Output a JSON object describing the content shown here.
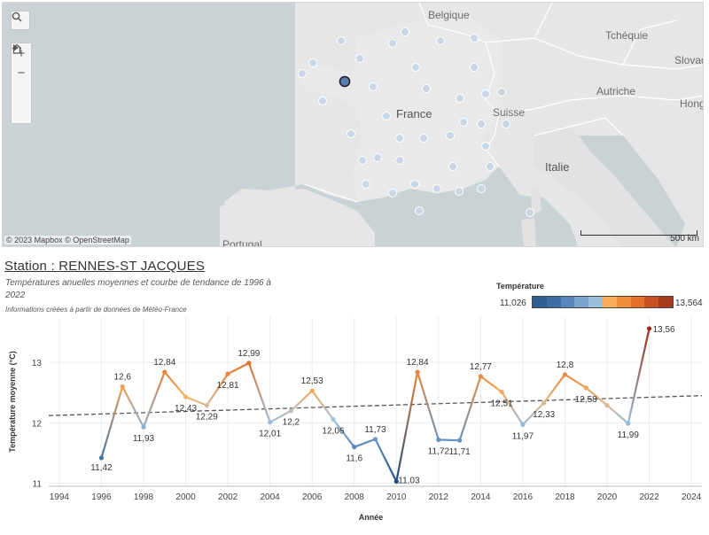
{
  "map": {
    "countries": [
      {
        "name": "Belgique",
        "id": "belgique"
      },
      {
        "name": "Tchéquie",
        "id": "tchequie"
      },
      {
        "name": "Slovaq",
        "id": "slovaquie"
      },
      {
        "name": "Autriche",
        "id": "autriche"
      },
      {
        "name": "Hong",
        "id": "hongrie"
      },
      {
        "name": "France",
        "id": "france"
      },
      {
        "name": "Suisse",
        "id": "suisse"
      },
      {
        "name": "Italie",
        "id": "italie"
      },
      {
        "name": "Portugal",
        "id": "portugal"
      }
    ],
    "attribution": "© 2023 Mapbox  © OpenStreetMap",
    "scale_label": "500 km",
    "tools": {
      "search": "search-icon",
      "zoom_in": "+",
      "zoom_out": "−",
      "home": "home-icon",
      "play": "play-icon"
    },
    "colors": {
      "sea": "#c9d3d5",
      "land": "#e6e6e6",
      "border": "#ffffff",
      "station": "#c9d7e6",
      "selected": "#5b7cb2"
    }
  },
  "header": {
    "title": "Station : RENNES-ST JACQUES",
    "subtitle": "Températures anuelles moyennes et courbe de tendance de 1996 à 2022",
    "note": "Informations créées à partir de données de Météo-France"
  },
  "legend": {
    "title": "Température",
    "min": "11,026",
    "max": "13,564",
    "colors": [
      "#2f5f91",
      "#3b6fa3",
      "#5787b8",
      "#79a5cc",
      "#9cc0dc",
      "#f8ad5c",
      "#f18e3c",
      "#e2702b",
      "#c8521f",
      "#a73a1c"
    ]
  },
  "chart_data": {
    "type": "line",
    "title": "",
    "xlabel": "Année",
    "ylabel": "Température moyenne (°C)",
    "xlim": [
      1993.5,
      2024.5
    ],
    "ylim": [
      10.95,
      13.75
    ],
    "x_ticks": [
      1994,
      1996,
      1998,
      2000,
      2002,
      2004,
      2006,
      2008,
      2010,
      2012,
      2014,
      2016,
      2018,
      2020,
      2022,
      2024
    ],
    "y_ticks": [
      11,
      12,
      13
    ],
    "x": [
      1996,
      1997,
      1998,
      1999,
      2000,
      2001,
      2002,
      2003,
      2004,
      2005,
      2006,
      2007,
      2008,
      2009,
      2010,
      2011,
      2012,
      2013,
      2014,
      2015,
      2016,
      2017,
      2018,
      2019,
      2020,
      2021,
      2022
    ],
    "values": [
      11.42,
      12.6,
      11.93,
      12.84,
      12.43,
      12.29,
      12.81,
      12.99,
      12.01,
      12.2,
      12.53,
      12.06,
      11.6,
      11.73,
      11.03,
      12.84,
      11.72,
      11.71,
      12.77,
      12.51,
      11.97,
      12.33,
      12.8,
      12.58,
      12.29,
      11.99,
      13.56
    ],
    "labels": [
      "11,42",
      "12,6",
      "11,93",
      "12,84",
      "12,43",
      "12,29",
      "12,81",
      "12,99",
      "12,01",
      "12,2",
      "12,53",
      "12,06",
      "11,6",
      "11,73",
      "11,03",
      "12,84",
      "11,72",
      "11,71",
      "12,77",
      "12,51",
      "11,97",
      "12,33",
      "12,8",
      "12,58",
      "",
      "11,99",
      "13,56"
    ],
    "trend": {
      "start": [
        1993.5,
        12.12
      ],
      "end": [
        2024.5,
        12.45
      ],
      "style": "dashed"
    },
    "color_range": [
      11.026,
      13.564
    ],
    "grid": true
  }
}
